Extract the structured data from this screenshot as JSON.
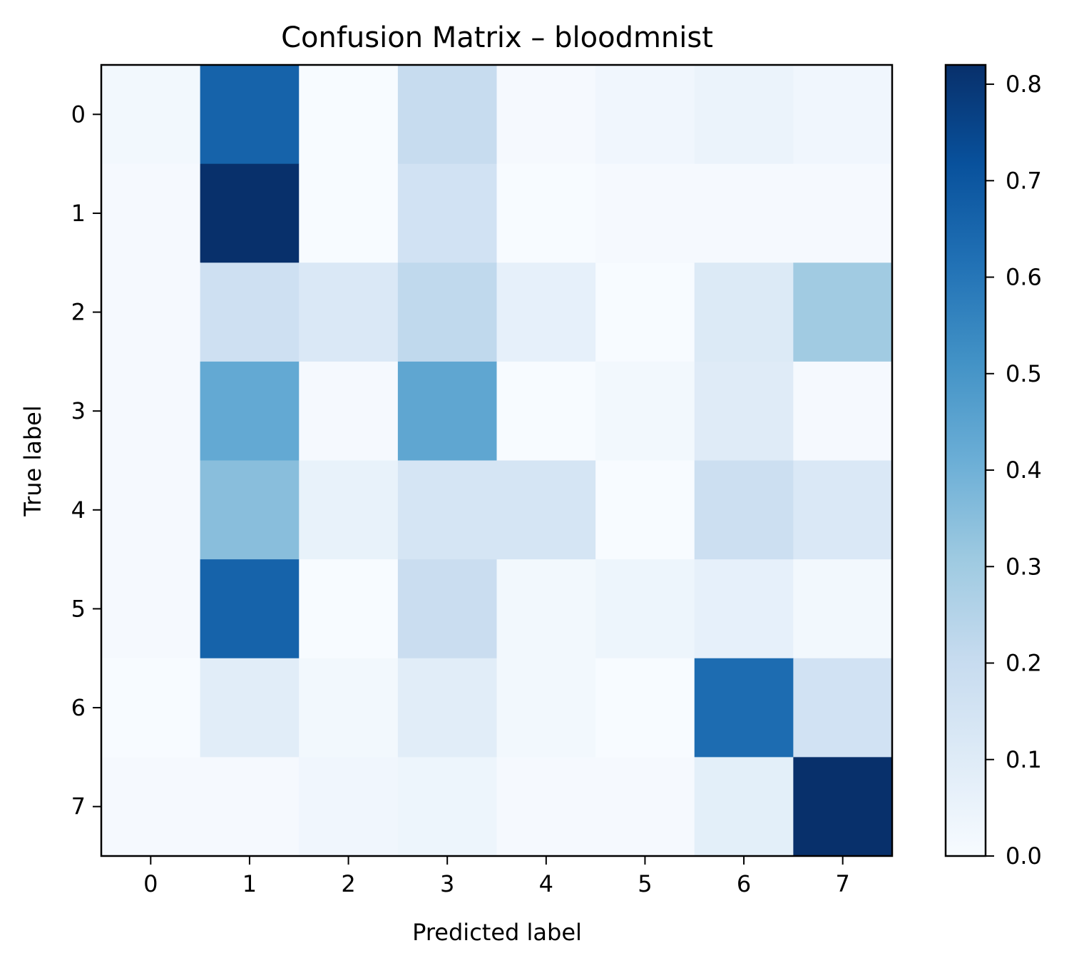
{
  "chart_data": {
    "type": "heatmap",
    "title": "Confusion Matrix – bloodmnist",
    "xlabel": "Predicted label",
    "ylabel": "True label",
    "x_categories": [
      "0",
      "1",
      "2",
      "3",
      "4",
      "5",
      "6",
      "7"
    ],
    "y_categories": [
      "0",
      "1",
      "2",
      "3",
      "4",
      "5",
      "6",
      "7"
    ],
    "values": [
      [
        0.02,
        0.66,
        0.0,
        0.2,
        0.01,
        0.03,
        0.05,
        0.03
      ],
      [
        0.01,
        0.82,
        0.0,
        0.16,
        0.0,
        0.01,
        0.01,
        0.01
      ],
      [
        0.01,
        0.17,
        0.12,
        0.22,
        0.07,
        0.0,
        0.11,
        0.3
      ],
      [
        0.01,
        0.43,
        0.01,
        0.44,
        0.0,
        0.02,
        0.1,
        0.01
      ],
      [
        0.01,
        0.35,
        0.06,
        0.14,
        0.14,
        0.0,
        0.18,
        0.12
      ],
      [
        0.01,
        0.66,
        0.0,
        0.19,
        0.02,
        0.04,
        0.07,
        0.02
      ],
      [
        0.0,
        0.09,
        0.02,
        0.09,
        0.02,
        0.0,
        0.63,
        0.16
      ],
      [
        0.01,
        0.01,
        0.03,
        0.04,
        0.01,
        0.01,
        0.08,
        0.82
      ]
    ],
    "colorbar": {
      "min": 0.0,
      "max": 0.82,
      "ticks": [
        0.0,
        0.1,
        0.2,
        0.3,
        0.4,
        0.5,
        0.6,
        0.7,
        0.8
      ],
      "tick_labels": [
        "0.0",
        "0.1",
        "0.2",
        "0.3",
        "0.4",
        "0.5",
        "0.6",
        "0.7",
        "0.8"
      ]
    },
    "colormap": "Blues",
    "colormap_stops": [
      "#f7fbff",
      "#deebf7",
      "#c6dbef",
      "#9ecae1",
      "#6baed6",
      "#4292c6",
      "#2171b5",
      "#08519c",
      "#08306b"
    ],
    "grid": false
  }
}
